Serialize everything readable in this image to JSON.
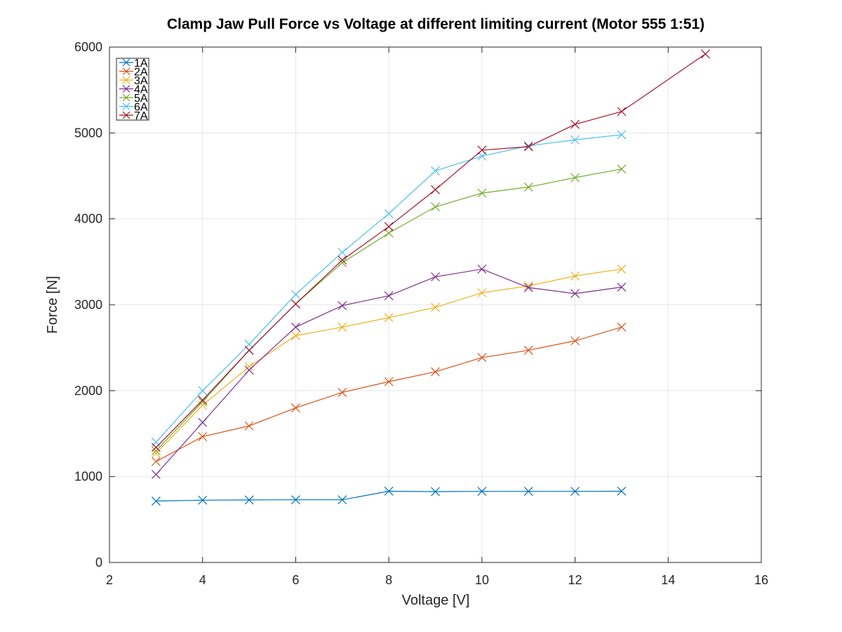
{
  "chart_data": {
    "type": "line",
    "title": "Clamp Jaw Pull Force vs Voltage at different limiting current (Motor 555 1:51)",
    "xlabel": "Voltage [V]",
    "ylabel": "Force [N]",
    "xlim": [
      2,
      16
    ],
    "ylim": [
      0,
      6000
    ],
    "xticks": [
      2,
      4,
      6,
      8,
      10,
      12,
      14,
      16
    ],
    "yticks": [
      0,
      1000,
      2000,
      3000,
      4000,
      5000,
      6000
    ],
    "xtick_labels": [
      "2",
      "4",
      "6",
      "8",
      "10",
      "12",
      "14",
      "16"
    ],
    "ytick_labels": [
      "0",
      "1000",
      "2000",
      "3000",
      "4000",
      "5000",
      "6000"
    ],
    "grid": true,
    "legend": "top-left",
    "marker": "x",
    "series": [
      {
        "name": "1A",
        "color": "#0072BD",
        "x": [
          3,
          4,
          5,
          6,
          7,
          8,
          9,
          10,
          11,
          12,
          13
        ],
        "y": [
          715,
          725,
          728,
          730,
          730,
          830,
          825,
          828,
          828,
          828,
          830
        ]
      },
      {
        "name": "2A",
        "color": "#D95319",
        "x": [
          3,
          4,
          5,
          6,
          7,
          8,
          9,
          10,
          11,
          12,
          13
        ],
        "y": [
          1175,
          1465,
          1590,
          1800,
          1980,
          2105,
          2220,
          2385,
          2470,
          2580,
          2740
        ]
      },
      {
        "name": "3A",
        "color": "#EDB120",
        "x": [
          3,
          4,
          5,
          6,
          7,
          8,
          9,
          10,
          11,
          12,
          13
        ],
        "y": [
          1270,
          1830,
          2280,
          2640,
          2740,
          2850,
          2970,
          3140,
          3220,
          3335,
          3415
        ]
      },
      {
        "name": "4A",
        "color": "#7E2F8E",
        "x": [
          3,
          4,
          5,
          6,
          7,
          8,
          9,
          10,
          11,
          12,
          13
        ],
        "y": [
          1025,
          1630,
          2240,
          2740,
          2990,
          3105,
          3325,
          3415,
          3200,
          3130,
          3205
        ]
      },
      {
        "name": "5A",
        "color": "#77AC30",
        "x": [
          3,
          4,
          5,
          6,
          7,
          8,
          9,
          10,
          11,
          12,
          13
        ],
        "y": [
          1300,
          1870,
          2470,
          3010,
          3490,
          3835,
          4140,
          4300,
          4370,
          4480,
          4580
        ]
      },
      {
        "name": "6A",
        "color": "#4DBEEE",
        "x": [
          3,
          4,
          5,
          6,
          7,
          8,
          9,
          10,
          11,
          12,
          13
        ],
        "y": [
          1400,
          2000,
          2540,
          3120,
          3610,
          4060,
          4560,
          4730,
          4850,
          4920,
          4980
        ]
      },
      {
        "name": "7A",
        "color": "#A2142F",
        "x": [
          3,
          4,
          5,
          6,
          7,
          8,
          9,
          10,
          11,
          12,
          13,
          14.8
        ],
        "y": [
          1340,
          1890,
          2470,
          3010,
          3520,
          3910,
          4340,
          4800,
          4840,
          5100,
          5250,
          5920
        ]
      }
    ]
  }
}
